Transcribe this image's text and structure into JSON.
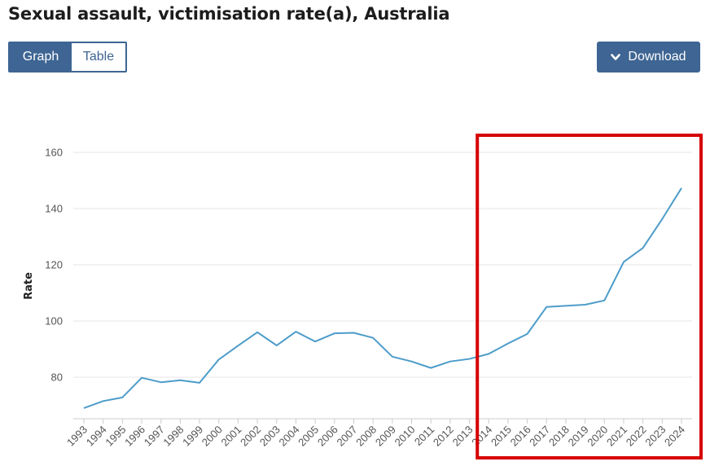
{
  "title": "Sexual assault, victimisation rate(a), Australia",
  "toggle": {
    "graph_label": "Graph",
    "table_label": "Table"
  },
  "download": {
    "label": "Download",
    "icon": "chevron-down-icon"
  },
  "colors": {
    "primary": "#3e6593",
    "line": "#4d9cc9",
    "highlight": "#d60000",
    "grid": "#e6e6e6"
  },
  "chart_data": {
    "type": "line",
    "ylabel": "Rate",
    "xlabel": "",
    "ylim": [
      65,
      170
    ],
    "yticks": [
      80,
      100,
      120,
      140,
      160
    ],
    "grid": "horizontal",
    "x": [
      "1993",
      "1994",
      "1995",
      "1996",
      "1997",
      "1998",
      "1999",
      "2000",
      "2001",
      "2002",
      "2003",
      "2004",
      "2005",
      "2006",
      "2007",
      "2008",
      "2009",
      "2010",
      "2011",
      "2012",
      "2013",
      "2014",
      "2015",
      "2016",
      "2017",
      "2018",
      "2019",
      "2020",
      "2021",
      "2022",
      "2023",
      "2024"
    ],
    "series": [
      {
        "values": [
          69.0,
          71.5,
          72.8,
          79.8,
          78.2,
          78.9,
          78.0,
          86.3,
          91.2,
          96.0,
          91.3,
          96.2,
          92.7,
          95.6,
          95.8,
          94.0,
          87.3,
          85.6,
          83.3,
          85.6,
          86.5,
          88.3,
          92.0,
          95.4,
          105.0,
          105.4,
          105.8,
          107.3,
          121.0,
          126.0,
          136.3,
          147.3
        ]
      }
    ],
    "highlight": {
      "from": "2014",
      "to": "2024"
    }
  }
}
